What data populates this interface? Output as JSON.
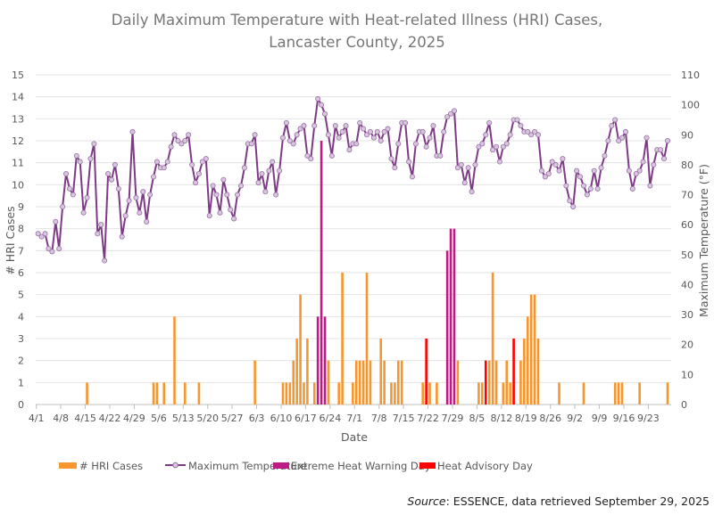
{
  "chart_data": {
    "type": "bar+line",
    "title": "Daily Maximum Temperature with Heat-related Illness (HRI) Cases,",
    "title_line2": "Lancaster County, 2025",
    "xlabel": "Date",
    "ylabel_left": "# HRI Cases",
    "ylabel_right": "Maximum Temperature (°F)",
    "ylim_left": [
      0,
      15
    ],
    "ylim_right": [
      0,
      110
    ],
    "yticks_left": [
      0,
      1,
      2,
      3,
      4,
      5,
      6,
      7,
      8,
      9,
      10,
      11,
      12,
      13,
      14,
      15
    ],
    "yticks_right": [
      0,
      10,
      20,
      30,
      40,
      50,
      60,
      70,
      80,
      90,
      100,
      110
    ],
    "xtick_labels": [
      "4/1",
      "4/8",
      "4/15",
      "4/22",
      "4/29",
      "5/6",
      "5/13",
      "5/20",
      "5/27",
      "6/3",
      "6/10",
      "6/17",
      "6/24",
      "7/1",
      "7/8",
      "7/15",
      "7/22",
      "7/29",
      "8/5",
      "8/12",
      "8/19",
      "8/26",
      "9/2",
      "9/9",
      "9/16",
      "9/23"
    ],
    "grid": true,
    "legend_placement": "bottom",
    "legend": [
      "# HRI Cases",
      "Maximum Temperature",
      "Extreme Heat Warning Day",
      "Heat Advisory Day"
    ],
    "colors": {
      "cases": "#F7962F",
      "temperature": "#7E3A86",
      "marker_fill": "#D7C6DD",
      "extreme_heat_warning": "#BE1A86",
      "heat_advisory": "#FF0000",
      "grid": "#E3E3E3"
    },
    "dates": [
      "4/1",
      "4/2",
      "4/3",
      "4/4",
      "4/5",
      "4/6",
      "4/7",
      "4/8",
      "4/9",
      "4/10",
      "4/11",
      "4/12",
      "4/13",
      "4/14",
      "4/15",
      "4/16",
      "4/17",
      "4/18",
      "4/19",
      "4/20",
      "4/21",
      "4/22",
      "4/23",
      "4/24",
      "4/25",
      "4/26",
      "4/27",
      "4/28",
      "4/29",
      "4/30",
      "5/1",
      "5/2",
      "5/3",
      "5/4",
      "5/5",
      "5/6",
      "5/7",
      "5/8",
      "5/9",
      "5/10",
      "5/11",
      "5/12",
      "5/13",
      "5/14",
      "5/15",
      "5/16",
      "5/17",
      "5/18",
      "5/19",
      "5/20",
      "5/21",
      "5/22",
      "5/23",
      "5/24",
      "5/25",
      "5/26",
      "5/27",
      "5/28",
      "5/29",
      "5/30",
      "5/31",
      "6/1",
      "6/2",
      "6/3",
      "6/4",
      "6/5",
      "6/6",
      "6/7",
      "6/8",
      "6/9",
      "6/10",
      "6/11",
      "6/12",
      "6/13",
      "6/14",
      "6/15",
      "6/16",
      "6/17",
      "6/18",
      "6/19",
      "6/20",
      "6/21",
      "6/22",
      "6/23",
      "6/24",
      "6/25",
      "6/26",
      "6/27",
      "6/28",
      "6/29",
      "6/30",
      "7/1",
      "7/2",
      "7/3",
      "7/4",
      "7/5",
      "7/6",
      "7/7",
      "7/8",
      "7/9",
      "7/10",
      "7/11",
      "7/12",
      "7/13",
      "7/14",
      "7/15",
      "7/16",
      "7/17",
      "7/18",
      "7/19",
      "7/20",
      "7/21",
      "7/22",
      "7/23",
      "7/24",
      "7/25",
      "7/26",
      "7/27",
      "7/28",
      "7/29",
      "7/30",
      "7/31",
      "8/1",
      "8/2",
      "8/3",
      "8/4",
      "8/5",
      "8/6",
      "8/7",
      "8/8",
      "8/9",
      "8/10",
      "8/11",
      "8/12",
      "8/13",
      "8/14",
      "8/15",
      "8/16",
      "8/17",
      "8/18",
      "8/19",
      "8/20",
      "8/21",
      "8/22",
      "8/23",
      "8/24",
      "8/25",
      "8/26",
      "8/27",
      "8/28",
      "8/29",
      "8/30",
      "8/31",
      "9/1",
      "9/2",
      "9/3",
      "9/4",
      "9/5",
      "9/6",
      "9/7",
      "9/8",
      "9/9",
      "9/10",
      "9/11",
      "9/12",
      "9/13",
      "9/14",
      "9/15",
      "9/16",
      "9/17",
      "9/18",
      "9/19",
      "9/20",
      "9/21",
      "9/22",
      "9/23",
      "9/24",
      "9/25",
      "9/26",
      "9/27",
      "9/28"
    ],
    "max_temperature": [
      57,
      56,
      57,
      52,
      51,
      61,
      52,
      66,
      77,
      72,
      70,
      83,
      81,
      64,
      69,
      82,
      87,
      57,
      60,
      48,
      77,
      75,
      80,
      72,
      56,
      63,
      68,
      91,
      69,
      64,
      71,
      61,
      70,
      76,
      81,
      79,
      79,
      81,
      86,
      90,
      88,
      87,
      88,
      90,
      80,
      74,
      77,
      81,
      82,
      63,
      73,
      70,
      64,
      75,
      70,
      65,
      62,
      70,
      73,
      79,
      87,
      87,
      90,
      74,
      77,
      71,
      78,
      81,
      70,
      78,
      89,
      94,
      88,
      87,
      90,
      92,
      93,
      83,
      82,
      93,
      102,
      100,
      97,
      90,
      83,
      93,
      89,
      91,
      93,
      85,
      87,
      87,
      94,
      92,
      90,
      91,
      89,
      91,
      88,
      91,
      92,
      82,
      79,
      87,
      94,
      94,
      81,
      76,
      87,
      91,
      91,
      86,
      89,
      93,
      83,
      83,
      91,
      96,
      97,
      98,
      79,
      80,
      74,
      79,
      71,
      80,
      86,
      87,
      90,
      94,
      85,
      86,
      81,
      86,
      87,
      90,
      95,
      95,
      93,
      91,
      91,
      90,
      91,
      90,
      78,
      76,
      77,
      81,
      80,
      78,
      82,
      73,
      68,
      66,
      78,
      76,
      73,
      70,
      72,
      78,
      72,
      79,
      83,
      88,
      93,
      95,
      88,
      89,
      91,
      78,
      72,
      77,
      78,
      81,
      89,
      73,
      80,
      85,
      85,
      82,
      88
    ],
    "hri_cases": {
      "4/15": 1,
      "5/4": 1,
      "5/5": 1,
      "5/7": 1,
      "5/10": 4,
      "5/13": 1,
      "5/17": 1,
      "6/2": 2,
      "6/10": 1,
      "6/11": 1,
      "6/12": 1,
      "6/13": 2,
      "6/14": 3,
      "6/15": 5,
      "6/16": 1,
      "6/17": 3,
      "6/19": 1,
      "6/20": 4,
      "6/21": 12,
      "6/22": 4,
      "6/23": 2,
      "6/26": 1,
      "6/27": 6,
      "6/30": 1,
      "7/1": 2,
      "7/2": 2,
      "7/3": 2,
      "7/4": 6,
      "7/5": 2,
      "7/8": 3,
      "7/9": 2,
      "7/11": 1,
      "7/12": 1,
      "7/13": 2,
      "7/14": 2,
      "7/20": 1,
      "7/21": 3,
      "7/22": 1,
      "7/24": 1,
      "7/27": 7,
      "7/28": 8,
      "7/29": 8,
      "7/30": 2,
      "8/5": 1,
      "8/6": 1,
      "8/7": 2,
      "8/8": 2,
      "8/9": 6,
      "8/10": 2,
      "8/12": 1,
      "8/13": 2,
      "8/14": 1,
      "8/15": 3,
      "8/17": 2,
      "8/18": 3,
      "8/19": 4,
      "8/20": 5,
      "8/21": 5,
      "8/22": 3,
      "8/28": 1,
      "9/4": 1,
      "9/13": 1,
      "9/14": 1,
      "9/15": 1,
      "9/20": 1,
      "9/28": 1
    },
    "extreme_heat_warning_days": [
      "6/20",
      "6/21",
      "6/22",
      "7/27",
      "7/28",
      "7/29"
    ],
    "heat_advisory_days": [
      "7/21",
      "8/7",
      "8/15"
    ]
  },
  "source": {
    "label": "Source",
    "text": ": ESSENCE, data retrieved September 29, 2025"
  }
}
